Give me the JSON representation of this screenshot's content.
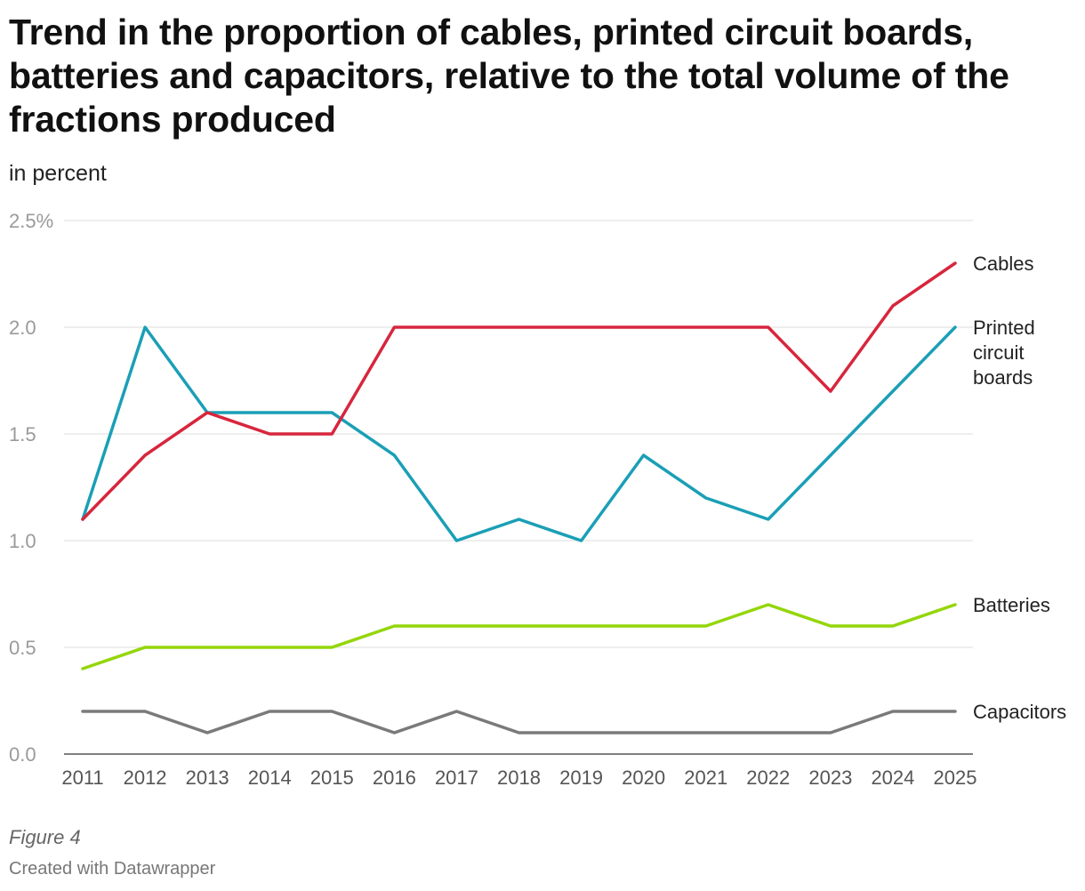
{
  "title": "Trend in the proportion of cables, printed circuit boards, batteries and capacitors, relative to the total volume of the fractions produced",
  "subtitle": "in percent",
  "footer": {
    "figure": "Figure 4",
    "credit": "Created with Datawrapper"
  },
  "chart_data": {
    "type": "line",
    "title": "Trend in the proportion of cables, printed circuit boards, batteries and capacitors, relative to the total volume of the fractions produced",
    "subtitle": "in percent",
    "xlabel": "",
    "ylabel": "",
    "x": [
      "2011",
      "2012",
      "2013",
      "2014",
      "2015",
      "2016",
      "2017",
      "2018",
      "2019",
      "2020",
      "2021",
      "2022",
      "2023",
      "2024",
      "2025"
    ],
    "ylim": [
      0,
      2.5
    ],
    "yticks": [
      {
        "value": 0,
        "label": "0.0"
      },
      {
        "value": 0.5,
        "label": "0.5"
      },
      {
        "value": 1.0,
        "label": "1.0"
      },
      {
        "value": 1.5,
        "label": "1.5"
      },
      {
        "value": 2.0,
        "label": "2.0"
      },
      {
        "value": 2.5,
        "label": "2.5%"
      }
    ],
    "grid": true,
    "legend": "direct labels at line ends",
    "series": [
      {
        "name": "Cables",
        "label_lines": [
          "Cables"
        ],
        "color": "#d7263d",
        "values": [
          1.1,
          1.4,
          1.6,
          1.5,
          1.5,
          2.0,
          2.0,
          2.0,
          2.0,
          2.0,
          2.0,
          2.0,
          1.7,
          2.1,
          2.3
        ]
      },
      {
        "name": "Printed circuit boards",
        "label_lines": [
          "Printed",
          "circuit",
          "boards"
        ],
        "color": "#1a9fb6",
        "values": [
          1.1,
          2.0,
          1.6,
          1.6,
          1.6,
          1.4,
          1.0,
          1.1,
          1.0,
          1.4,
          1.2,
          1.1,
          1.4,
          1.7,
          2.0
        ]
      },
      {
        "name": "Batteries",
        "label_lines": [
          "Batteries"
        ],
        "color": "#94d60a",
        "values": [
          0.4,
          0.5,
          0.5,
          0.5,
          0.5,
          0.6,
          0.6,
          0.6,
          0.6,
          0.6,
          0.6,
          0.7,
          0.6,
          0.6,
          0.7
        ]
      },
      {
        "name": "Capacitors",
        "label_lines": [
          "Capacitors"
        ],
        "color": "#7a7a7a",
        "values": [
          0.2,
          0.2,
          0.1,
          0.2,
          0.2,
          0.1,
          0.2,
          0.1,
          0.1,
          0.1,
          0.1,
          0.1,
          0.1,
          0.2,
          0.2
        ]
      }
    ]
  }
}
